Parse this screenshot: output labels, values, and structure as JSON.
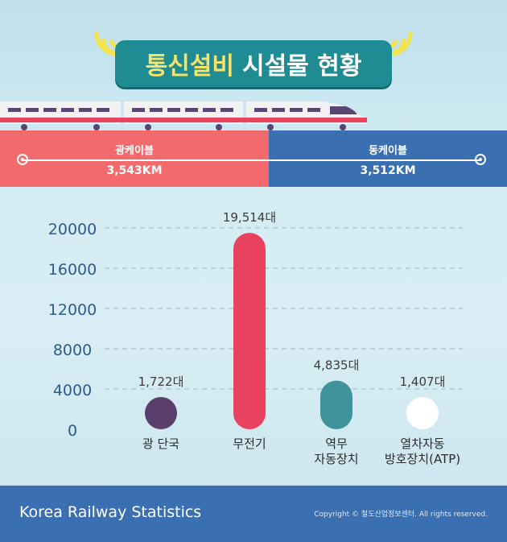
{
  "header": {
    "title_highlight": "통신설비",
    "title_rest": "시설물 현황"
  },
  "cables": {
    "left": {
      "name": "광케이블",
      "value": "3,543KM"
    },
    "right": {
      "name": "동케이블",
      "value": "3,512KM"
    }
  },
  "colors": {
    "teal": "#1f8b92",
    "coral": "#f36a6c",
    "blue": "#3a6fb2",
    "highlight": "#f7e36b"
  },
  "chart_data": {
    "type": "bar",
    "categories": [
      [
        "광 단국"
      ],
      [
        "무전기"
      ],
      [
        "역무",
        "자동장치"
      ],
      [
        "열차자동",
        "방호장치(ATP)"
      ]
    ],
    "values": [
      1722,
      19514,
      4835,
      1407
    ],
    "value_labels": [
      "1,722대",
      "19,514대",
      "4,835대",
      "1,407대"
    ],
    "bar_colors": [
      "#5a3e6b",
      "#e8425f",
      "#3f939a",
      "#ffffff"
    ],
    "yticks": [
      0,
      4000,
      8000,
      12000,
      16000,
      20000
    ],
    "ylim": [
      0,
      20000
    ],
    "grid": true,
    "title": "",
    "xlabel": "",
    "ylabel": ""
  },
  "footer": {
    "brand": "Korea Railway Statistics",
    "copyright": "Copyright © 철도산업정보센터. All rights reserved."
  }
}
